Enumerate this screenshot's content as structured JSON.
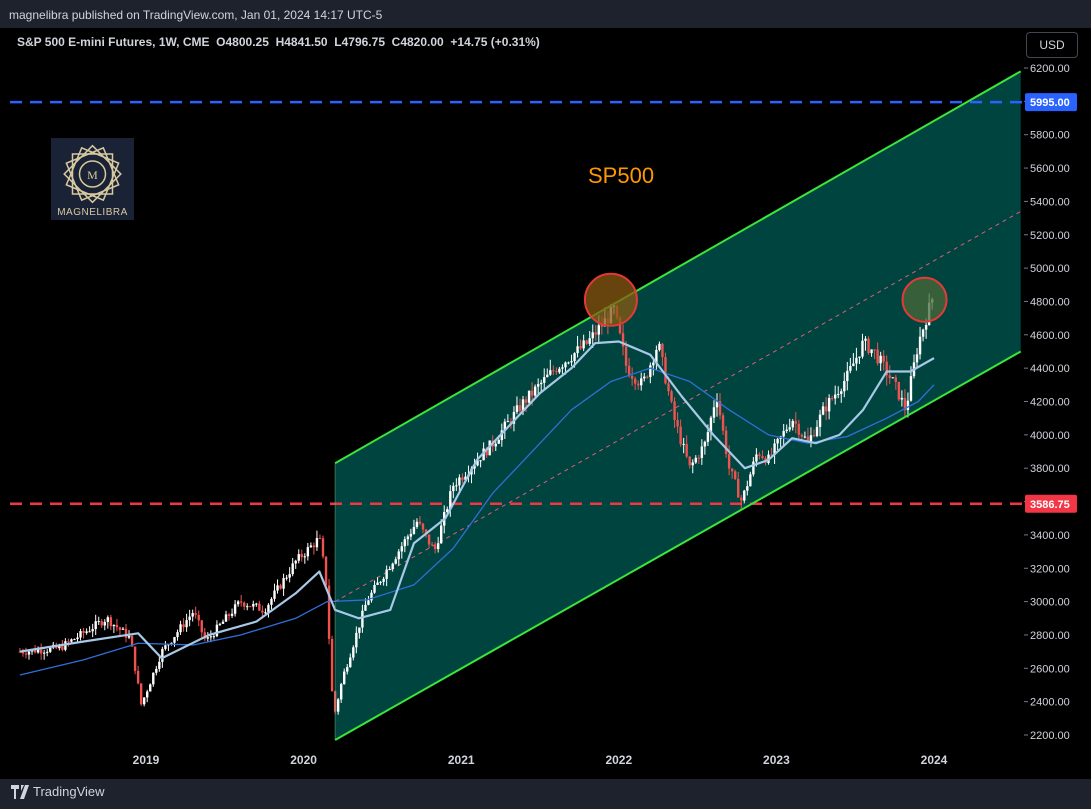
{
  "header": {
    "published": "magnelibra published on TradingView.com, Jan 01, 2024 14:17 UTC-5"
  },
  "legend": {
    "symbol": "S&P 500 E-mini Futures, 1W, CME",
    "open": "O4800.25",
    "high": "H4841.50",
    "low": "L4796.75",
    "close": "C4820.00",
    "change": "+14.75 (+0.31%)"
  },
  "currency_button": "USD",
  "logo": {
    "text": "MAGNELIBRA"
  },
  "footer": {
    "brand": "TradingView"
  },
  "colors": {
    "channel": "#39e639",
    "channel_fill": "#00504a",
    "resistance": "#2962ff",
    "support": "#f23645",
    "ma_fast": "#a8c8e8",
    "ma_slow": "#2f6fd6",
    "up_candle": "#ffffff",
    "down_candle": "#ef5350",
    "title": "#ff9800"
  },
  "chart_data": {
    "type": "candlestick",
    "title": "SP500",
    "ylim": [
      2100,
      6280
    ],
    "y_ticks": [
      2200,
      2400,
      2600,
      2800,
      3000,
      3200,
      3400,
      3600,
      3800,
      4000,
      4200,
      4400,
      4600,
      4800,
      5000,
      5200,
      5400,
      5600,
      5800,
      6000,
      6200
    ],
    "y_tick_labels": [
      "2200.00",
      "2400.00",
      "2600.00",
      "2800.00",
      "3000.00",
      "3200.00",
      "3400.00",
      "3600.00",
      "3800.00",
      "4000.00",
      "4200.00",
      "4400.00",
      "4600.00",
      "4800.00",
      "5000.00",
      "5200.00",
      "5400.00",
      "5600.00",
      "5800.00",
      "6000.00",
      "6200.00"
    ],
    "x_ticks": [
      {
        "label": "2019",
        "t": 2019.0
      },
      {
        "label": "2020",
        "t": 2020.0
      },
      {
        "label": "2021",
        "t": 2021.0
      },
      {
        "label": "2022",
        "t": 2022.0
      },
      {
        "label": "2023",
        "t": 2023.0
      },
      {
        "label": "2024",
        "t": 2024.0
      }
    ],
    "xlim": [
      2018.2,
      2024.75
    ],
    "horizontal_levels": [
      {
        "name": "resistance",
        "value": 5995.0,
        "label": "5995.00"
      },
      {
        "name": "support",
        "value": 3586.75,
        "label": "3586.75"
      }
    ],
    "channel": {
      "start_t": 2020.2,
      "end_t": 2024.55,
      "upper_start": 3830,
      "upper_end": 6180,
      "lower_start": 2170,
      "lower_end": 4500,
      "mid_start": 3000,
      "mid_end": 5340
    },
    "highlights": [
      {
        "name": "top-2022",
        "t": 2021.95,
        "value": 4810
      },
      {
        "name": "top-2024",
        "t": 2023.94,
        "value": 4810
      }
    ],
    "price_path": [
      [
        2018.2,
        2700
      ],
      [
        2018.45,
        2720
      ],
      [
        2018.75,
        2900
      ],
      [
        2018.9,
        2780
      ],
      [
        2018.97,
        2380
      ],
      [
        2019.1,
        2700
      ],
      [
        2019.3,
        2940
      ],
      [
        2019.38,
        2760
      ],
      [
        2019.6,
        3000
      ],
      [
        2019.75,
        2950
      ],
      [
        2019.95,
        3240
      ],
      [
        2020.1,
        3380
      ],
      [
        2020.14,
        3150
      ],
      [
        2020.19,
        2300
      ],
      [
        2020.25,
        2550
      ],
      [
        2020.4,
        3000
      ],
      [
        2020.6,
        3300
      ],
      [
        2020.72,
        3480
      ],
      [
        2020.83,
        3300
      ],
      [
        2020.95,
        3700
      ],
      [
        2021.2,
        3950
      ],
      [
        2021.4,
        4200
      ],
      [
        2021.6,
        4400
      ],
      [
        2021.8,
        4550
      ],
      [
        2021.97,
        4750
      ],
      [
        2022.05,
        4400
      ],
      [
        2022.15,
        4300
      ],
      [
        2022.25,
        4550
      ],
      [
        2022.35,
        4100
      ],
      [
        2022.45,
        3800
      ],
      [
        2022.55,
        3950
      ],
      [
        2022.62,
        4250
      ],
      [
        2022.7,
        3800
      ],
      [
        2022.78,
        3600
      ],
      [
        2022.88,
        3900
      ],
      [
        2022.95,
        3850
      ],
      [
        2023.1,
        4100
      ],
      [
        2023.2,
        3950
      ],
      [
        2023.3,
        4150
      ],
      [
        2023.45,
        4350
      ],
      [
        2023.55,
        4550
      ],
      [
        2023.62,
        4500
      ],
      [
        2023.75,
        4300
      ],
      [
        2023.82,
        4150
      ],
      [
        2023.9,
        4550
      ],
      [
        2023.99,
        4820
      ]
    ],
    "ma_fast": [
      [
        2018.2,
        2700
      ],
      [
        2018.6,
        2760
      ],
      [
        2018.95,
        2810
      ],
      [
        2019.1,
        2660
      ],
      [
        2019.4,
        2800
      ],
      [
        2019.7,
        2880
      ],
      [
        2019.95,
        3050
      ],
      [
        2020.1,
        3180
      ],
      [
        2020.2,
        2950
      ],
      [
        2020.35,
        2900
      ],
      [
        2020.55,
        2950
      ],
      [
        2020.7,
        3350
      ],
      [
        2020.9,
        3500
      ],
      [
        2021.1,
        3850
      ],
      [
        2021.3,
        4050
      ],
      [
        2021.5,
        4250
      ],
      [
        2021.7,
        4400
      ],
      [
        2021.85,
        4550
      ],
      [
        2022.0,
        4560
      ],
      [
        2022.2,
        4480
      ],
      [
        2022.4,
        4230
      ],
      [
        2022.6,
        4000
      ],
      [
        2022.8,
        3800
      ],
      [
        2022.95,
        3850
      ],
      [
        2023.1,
        3980
      ],
      [
        2023.25,
        3950
      ],
      [
        2023.4,
        4000
      ],
      [
        2023.55,
        4150
      ],
      [
        2023.7,
        4380
      ],
      [
        2023.85,
        4380
      ],
      [
        2024.0,
        4460
      ]
    ],
    "ma_slow": [
      [
        2018.2,
        2560
      ],
      [
        2018.6,
        2650
      ],
      [
        2018.95,
        2750
      ],
      [
        2019.3,
        2740
      ],
      [
        2019.6,
        2800
      ],
      [
        2019.95,
        2900
      ],
      [
        2020.15,
        3000
      ],
      [
        2020.4,
        3010
      ],
      [
        2020.7,
        3100
      ],
      [
        2020.95,
        3320
      ],
      [
        2021.2,
        3650
      ],
      [
        2021.45,
        3900
      ],
      [
        2021.7,
        4150
      ],
      [
        2021.95,
        4320
      ],
      [
        2022.2,
        4400
      ],
      [
        2022.45,
        4320
      ],
      [
        2022.7,
        4150
      ],
      [
        2022.95,
        4000
      ],
      [
        2023.2,
        3950
      ],
      [
        2023.45,
        3990
      ],
      [
        2023.7,
        4100
      ],
      [
        2023.9,
        4200
      ],
      [
        2024.0,
        4300
      ]
    ]
  }
}
